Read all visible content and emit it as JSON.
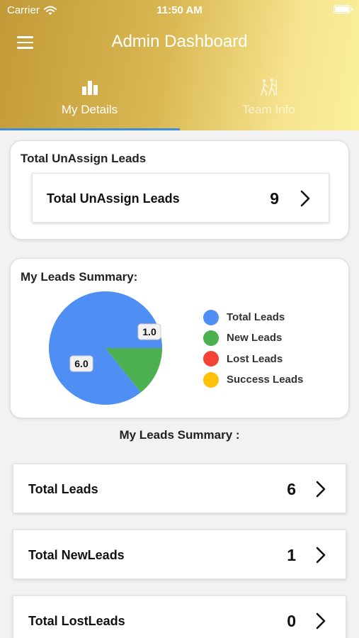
{
  "status_bar": {
    "carrier": "Carrier",
    "time": "11:50 AM"
  },
  "header": {
    "title": "Admin Dashboard"
  },
  "tabs": [
    {
      "label": "My Details",
      "icon": "bar-chart-icon",
      "active": true
    },
    {
      "label": "Team Info",
      "icon": "team-hiking-icon",
      "active": false
    }
  ],
  "unassign_card": {
    "title": "Total UnAssign Leads",
    "item_label": "Total UnAssign Leads",
    "item_value": "9"
  },
  "chart_card": {
    "title": "My Leads Summary:"
  },
  "chart_data": {
    "type": "pie",
    "slices": [
      {
        "label": "Total Leads",
        "value": 6.0,
        "display": "6.0",
        "color": "#4f8ff4"
      },
      {
        "label": "New Leads",
        "value": 1.0,
        "display": "1.0",
        "color": "#4caf50"
      },
      {
        "label": "Lost Leads",
        "value": 0,
        "display": "",
        "color": "#f44336"
      },
      {
        "label": "Success Leads",
        "value": 0,
        "display": "",
        "color": "#ffc107"
      }
    ],
    "legend_position": "right"
  },
  "summary": {
    "title": "My Leads Summary :",
    "items": [
      {
        "label": "Total Leads",
        "value": "6"
      },
      {
        "label": "Total NewLeads",
        "value": "1"
      },
      {
        "label": "Total LostLeads",
        "value": "0"
      }
    ]
  },
  "colors": {
    "accent": "#3d8fd9",
    "header_start": "#c29a38",
    "header_end": "#fbf09d"
  }
}
